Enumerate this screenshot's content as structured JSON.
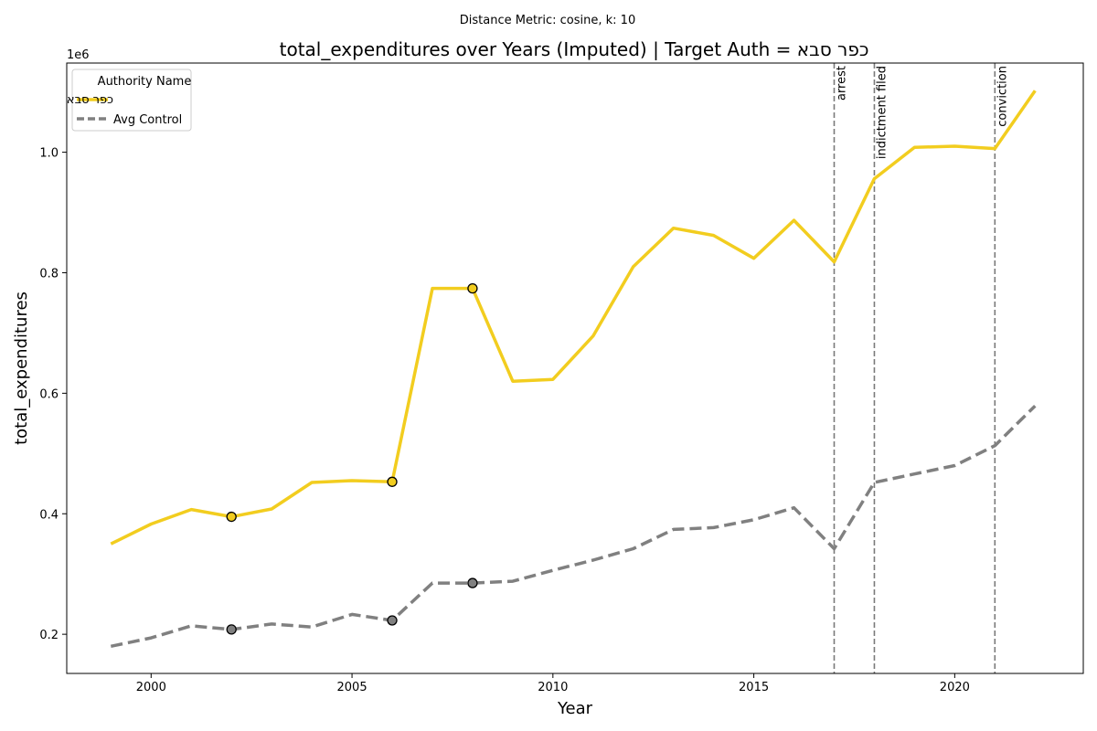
{
  "chart_data": {
    "type": "line",
    "suptitle": "Distance Metric: cosine, k: 10",
    "title": "total_expenditures over Years (Imputed) | Target Auth = כפר סבא",
    "xlabel": "Year",
    "ylabel": "total_expenditures",
    "y_offset_label": "1e6",
    "y_scale": 1000000,
    "xlim": [
      1997.9,
      2023.2
    ],
    "ylim": [
      135000,
      1148000
    ],
    "x_ticks": [
      2000,
      2005,
      2010,
      2015,
      2020
    ],
    "x_tick_labels": [
      "2000",
      "2005",
      "2010",
      "2015",
      "2020"
    ],
    "y_ticks": [
      200000,
      400000,
      600000,
      800000,
      1000000
    ],
    "y_tick_labels": [
      "0.2",
      "0.4",
      "0.6",
      "0.8",
      "1.0"
    ],
    "legend": {
      "title": "Authority Name",
      "placement": "upper-left"
    },
    "x": [
      1999,
      2000,
      2001,
      2002,
      2003,
      2004,
      2005,
      2006,
      2007,
      2008,
      2009,
      2010,
      2011,
      2012,
      2013,
      2014,
      2015,
      2016,
      2017,
      2018,
      2019,
      2020,
      2021,
      2022
    ],
    "series": [
      {
        "name": "כפר סבא",
        "color": "#f2cd1f",
        "style": "solid",
        "values": [
          350000,
          383000,
          407000,
          395000,
          408000,
          452000,
          455000,
          453000,
          774000,
          774000,
          620000,
          623000,
          695000,
          810000,
          874000,
          862000,
          824000,
          887000,
          818000,
          956000,
          1008000,
          1010000,
          1006000,
          1102000
        ]
      },
      {
        "name": "Avg Control",
        "color": "#808080",
        "style": "dashed",
        "values": [
          180000,
          194000,
          214000,
          208000,
          217000,
          212000,
          233000,
          223000,
          285000,
          285000,
          288000,
          306000,
          323000,
          342000,
          374000,
          377000,
          390000,
          410000,
          342000,
          452000,
          466000,
          480000,
          513000,
          579000
        ]
      }
    ],
    "imputed_points": [
      {
        "series": 0,
        "x": 2002,
        "y": 395000
      },
      {
        "series": 0,
        "x": 2006,
        "y": 453000
      },
      {
        "series": 0,
        "x": 2008,
        "y": 774000
      },
      {
        "series": 1,
        "x": 2002,
        "y": 208000
      },
      {
        "series": 1,
        "x": 2006,
        "y": 223000
      },
      {
        "series": 1,
        "x": 2008,
        "y": 285000
      }
    ],
    "events": [
      {
        "x": 2017,
        "label": "arrest"
      },
      {
        "x": 2018,
        "label": "indictment filed"
      },
      {
        "x": 2021,
        "label": "conviction"
      }
    ]
  }
}
